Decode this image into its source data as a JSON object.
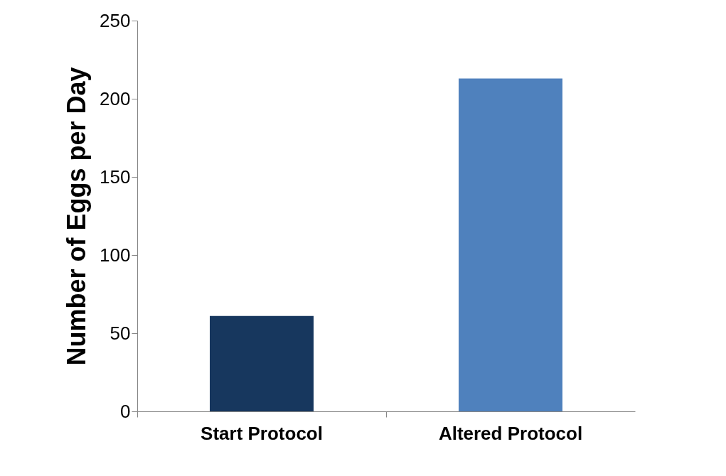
{
  "chart_data": {
    "type": "bar",
    "ylabel": "Number of Eggs per Day",
    "categories": [
      "Start Protocol",
      "Altered Protocol"
    ],
    "values": [
      61,
      213
    ],
    "colors": [
      "#17375e",
      "#4f81bd"
    ],
    "ylim": [
      0,
      250
    ],
    "yticks": [
      0,
      50,
      100,
      150,
      200,
      250
    ],
    "grid": false
  }
}
